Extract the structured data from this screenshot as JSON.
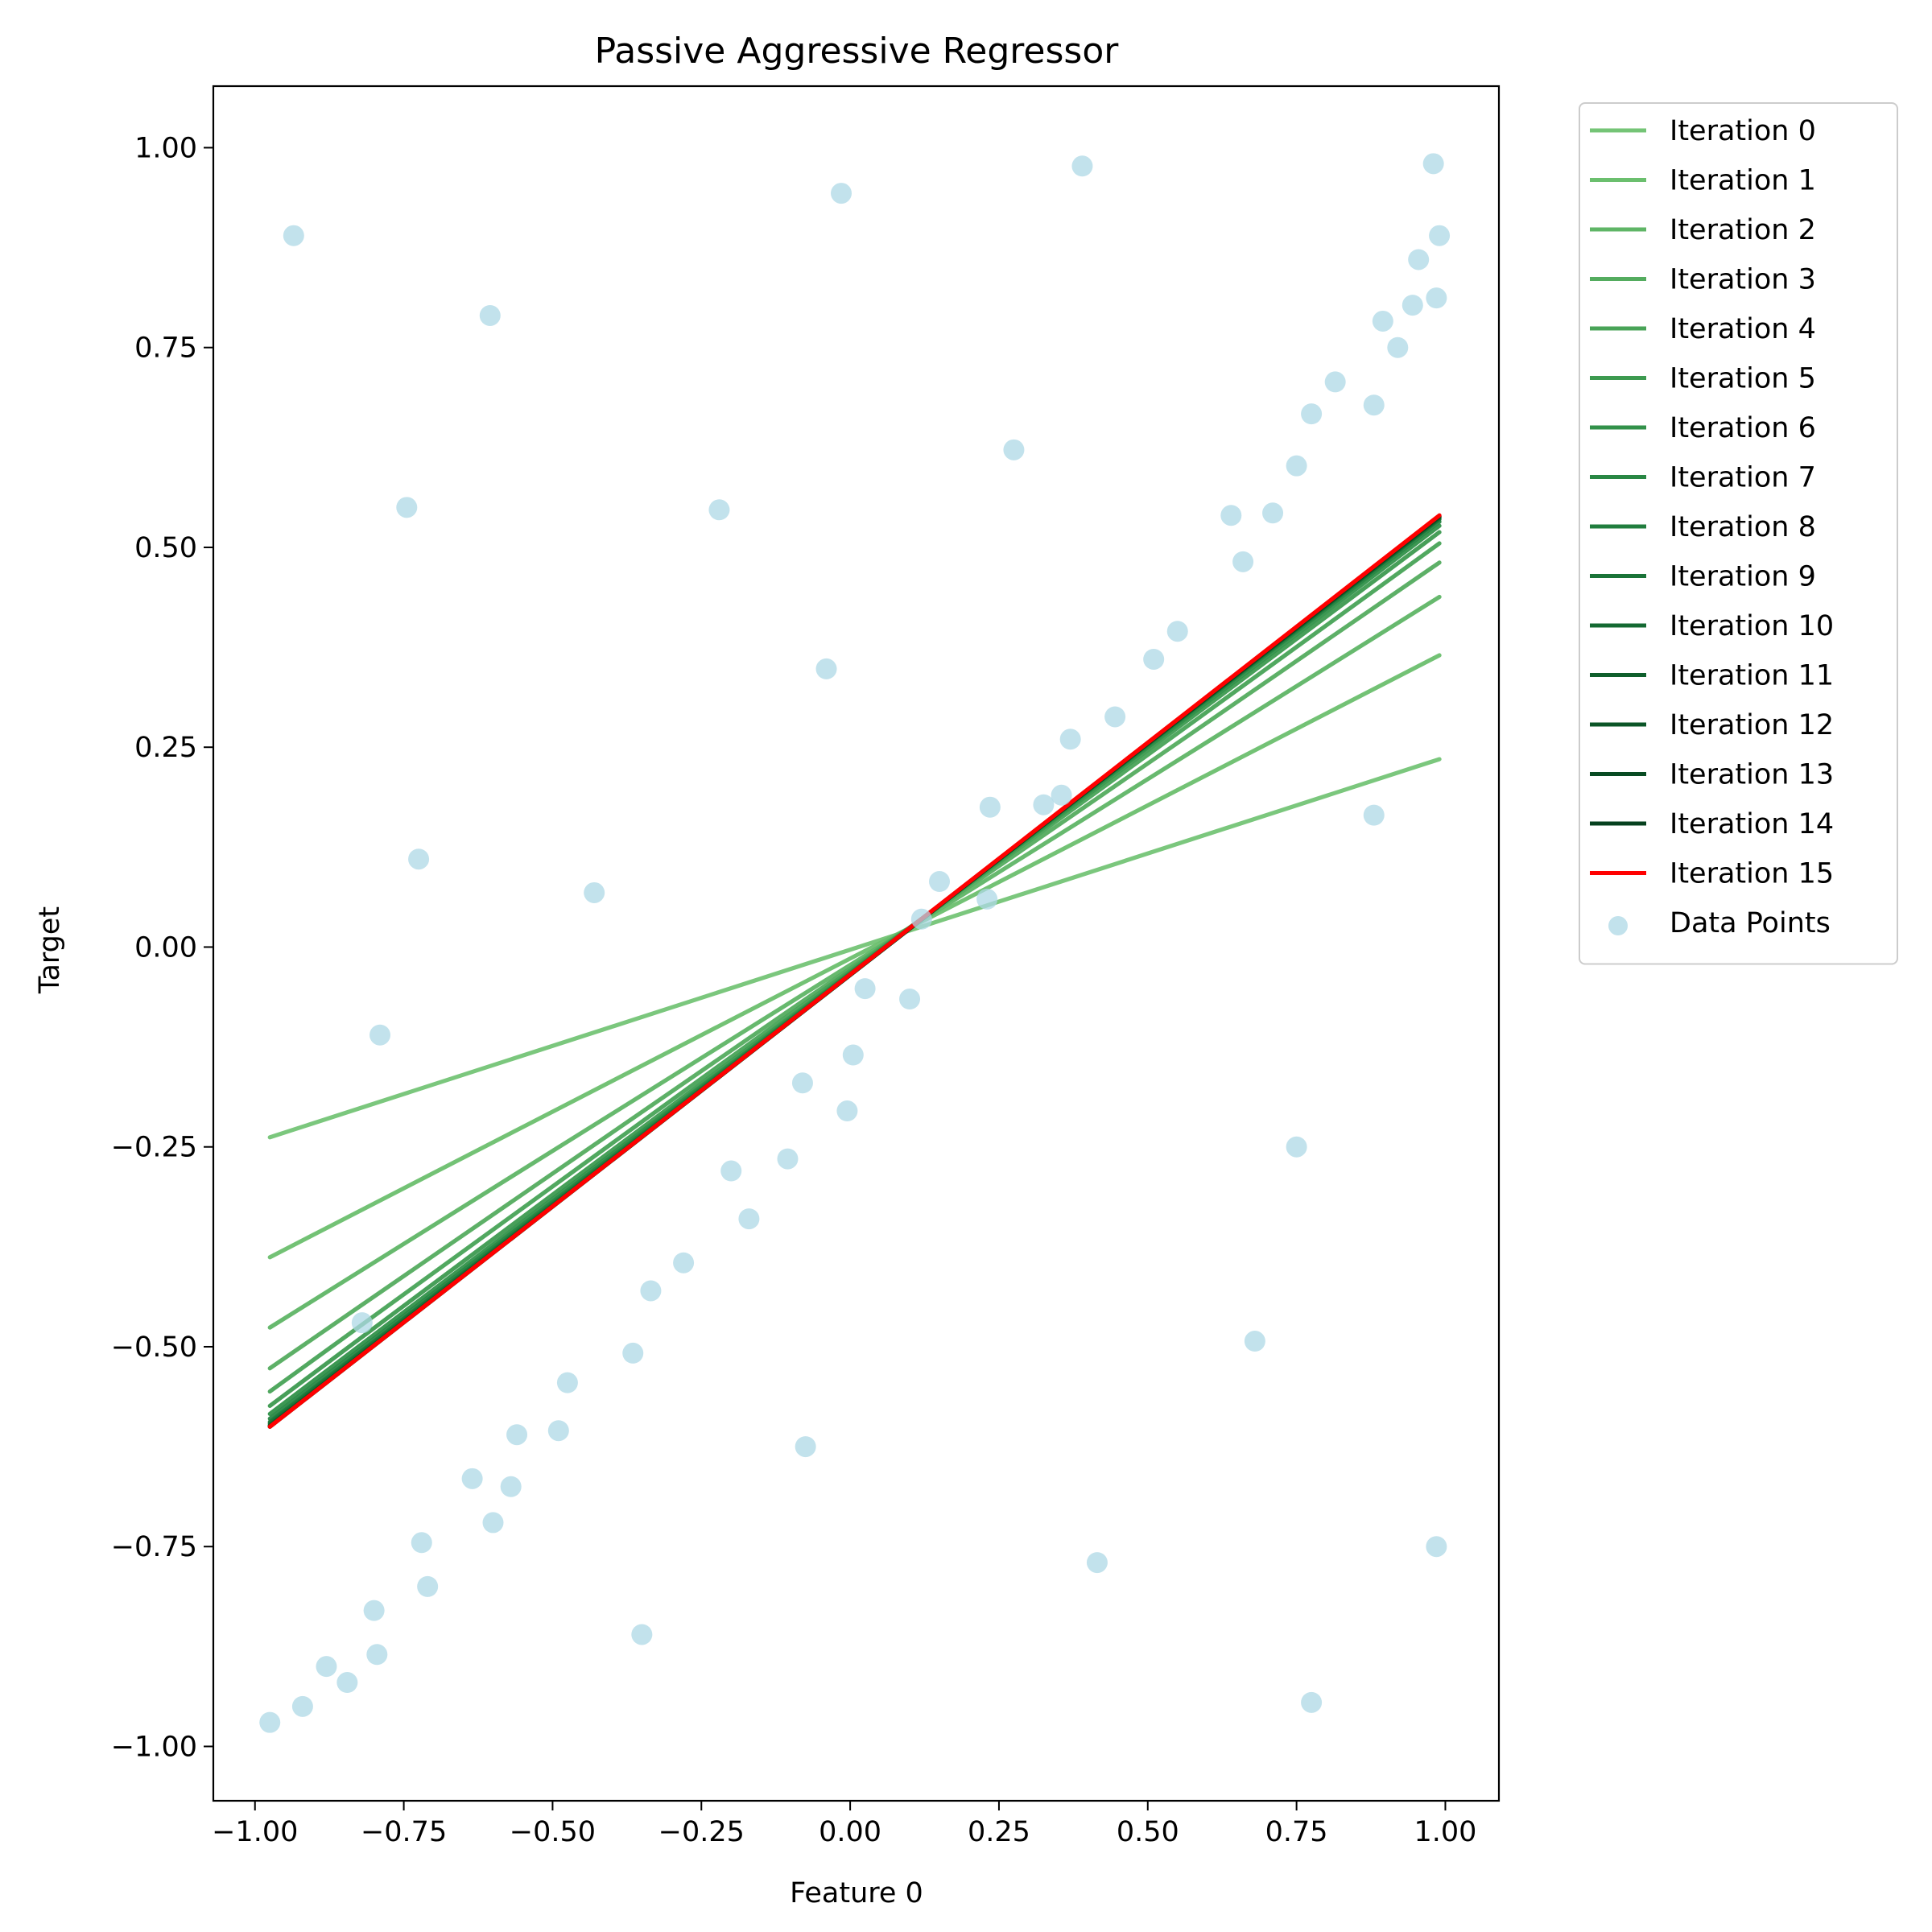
{
  "chart_data": {
    "type": "line",
    "title": "Passive Aggressive Regressor",
    "xlabel": "Feature 0",
    "ylabel": "Target",
    "xlim": [
      -1.07,
      1.09
    ],
    "ylim": [
      -1.068,
      1.077
    ],
    "xticks": [
      -1.0,
      -0.75,
      -0.5,
      -0.25,
      0.0,
      0.25,
      0.5,
      0.75,
      1.0
    ],
    "xtick_labels": [
      "−1.00",
      "−0.75",
      "−0.50",
      "−0.25",
      "0.00",
      "0.25",
      "0.50",
      "0.75",
      "1.00"
    ],
    "yticks": [
      1.0,
      0.75,
      0.5,
      0.25,
      0.0,
      -0.25,
      -0.5,
      -0.75,
      -1.0
    ],
    "ytick_labels": [
      "1.00",
      "0.75",
      "0.50",
      "0.25",
      "0.00",
      "−0.25",
      "−0.50",
      "−0.75",
      "−1.00"
    ],
    "grid": false,
    "legend_position": "outside-top-right",
    "x_range": [
      -0.975,
      0.99
    ],
    "series": [
      {
        "name": "Iteration 0",
        "color": "#74c476",
        "y": [
          -0.238,
          0.235
        ]
      },
      {
        "name": "Iteration 1",
        "color": "#6bbf6e",
        "y": [
          -0.388,
          0.365
        ]
      },
      {
        "name": "Iteration 2",
        "color": "#5fb566",
        "y": [
          -0.476,
          0.438
        ]
      },
      {
        "name": "Iteration 3",
        "color": "#54ac5f",
        "y": [
          -0.527,
          0.481
        ]
      },
      {
        "name": "Iteration 4",
        "color": "#48a357",
        "y": [
          -0.556,
          0.505
        ]
      },
      {
        "name": "Iteration 5",
        "color": "#3d9a50",
        "y": [
          -0.574,
          0.519
        ]
      },
      {
        "name": "Iteration 6",
        "color": "#32914a",
        "y": [
          -0.584,
          0.527
        ]
      },
      {
        "name": "Iteration 7",
        "color": "#298744",
        "y": [
          -0.59,
          0.532
        ]
      },
      {
        "name": "Iteration 8",
        "color": "#217d3e",
        "y": [
          -0.594,
          0.535
        ]
      },
      {
        "name": "Iteration 9",
        "color": "#1a7338",
        "y": [
          -0.596,
          0.536
        ]
      },
      {
        "name": "Iteration 10",
        "color": "#146932",
        "y": [
          -0.598,
          0.537
        ]
      },
      {
        "name": "Iteration 11",
        "color": "#0f5f2c",
        "y": [
          -0.599,
          0.538
        ]
      },
      {
        "name": "Iteration 12",
        "color": "#0b5527",
        "y": [
          -0.599,
          0.538
        ]
      },
      {
        "name": "Iteration 13",
        "color": "#084b22",
        "y": [
          -0.6,
          0.539
        ]
      },
      {
        "name": "Iteration 14",
        "color": "#06411e",
        "y": [
          -0.6,
          0.539
        ]
      },
      {
        "name": "Iteration 15",
        "color": "#ff0000",
        "y": [
          -0.6,
          0.54
        ]
      }
    ],
    "scatter": {
      "name": "Data Points",
      "color": "#add8e6",
      "points": [
        [
          -0.975,
          -0.97
        ],
        [
          -0.92,
          -0.95
        ],
        [
          -0.88,
          -0.9
        ],
        [
          -0.845,
          -0.92
        ],
        [
          -0.8,
          -0.83
        ],
        [
          -0.795,
          -0.885
        ],
        [
          -0.935,
          0.89
        ],
        [
          -0.745,
          0.55
        ],
        [
          -0.725,
          0.11
        ],
        [
          -0.79,
          -0.11
        ],
        [
          -0.82,
          -0.47
        ],
        [
          -0.72,
          -0.745
        ],
        [
          -0.71,
          -0.8
        ],
        [
          -0.635,
          -0.665
        ],
        [
          -0.6,
          -0.72
        ],
        [
          -0.57,
          -0.675
        ],
        [
          -0.56,
          -0.61
        ],
        [
          -0.49,
          -0.605
        ],
        [
          -0.475,
          -0.545
        ],
        [
          -0.605,
          0.79
        ],
        [
          -0.43,
          0.068
        ],
        [
          -0.365,
          -0.508
        ],
        [
          -0.335,
          -0.43
        ],
        [
          -0.28,
          -0.395
        ],
        [
          -0.35,
          -0.86
        ],
        [
          -0.22,
          0.547
        ],
        [
          -0.2,
          -0.28
        ],
        [
          -0.17,
          -0.34
        ],
        [
          -0.105,
          -0.265
        ],
        [
          -0.08,
          -0.17
        ],
        [
          -0.075,
          -0.625
        ],
        [
          -0.04,
          0.348
        ],
        [
          -0.015,
          0.943
        ],
        [
          -0.005,
          -0.205
        ],
        [
          0.005,
          -0.135
        ],
        [
          0.025,
          -0.052
        ],
        [
          0.1,
          -0.065
        ],
        [
          0.12,
          0.035
        ],
        [
          0.15,
          0.082
        ],
        [
          0.235,
          0.175
        ],
        [
          0.23,
          0.06
        ],
        [
          0.275,
          0.622
        ],
        [
          0.325,
          0.178
        ],
        [
          0.355,
          0.19
        ],
        [
          0.37,
          0.26
        ],
        [
          0.39,
          0.977
        ],
        [
          0.415,
          -0.77
        ],
        [
          0.445,
          0.288
        ],
        [
          0.51,
          0.36
        ],
        [
          0.55,
          0.395
        ],
        [
          0.64,
          0.54
        ],
        [
          0.66,
          0.482
        ],
        [
          0.68,
          -0.493
        ],
        [
          0.71,
          0.543
        ],
        [
          0.75,
          0.602
        ],
        [
          0.75,
          -0.25
        ],
        [
          0.775,
          0.667
        ],
        [
          0.775,
          -0.945
        ],
        [
          0.815,
          0.707
        ],
        [
          0.88,
          0.678
        ],
        [
          0.88,
          0.165
        ],
        [
          0.895,
          0.783
        ],
        [
          0.92,
          0.75
        ],
        [
          0.945,
          0.803
        ],
        [
          0.955,
          0.86
        ],
        [
          0.98,
          0.98
        ],
        [
          0.985,
          0.812
        ],
        [
          0.99,
          0.89
        ],
        [
          0.985,
          -0.75
        ]
      ]
    }
  }
}
